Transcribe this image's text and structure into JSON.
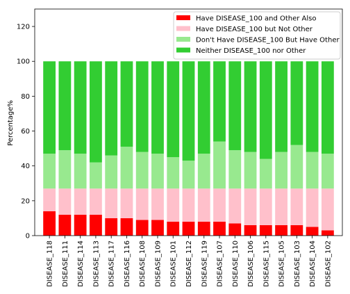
{
  "chart_data": {
    "type": "bar",
    "stacked": true,
    "ylabel": "Percentage%",
    "xlabel": "",
    "title": "",
    "ylim": [
      0,
      130
    ],
    "yticks": [
      0,
      20,
      40,
      60,
      80,
      100,
      120
    ],
    "grid": false,
    "legend_position": "top-right",
    "categories": [
      "DISEASE_118",
      "DISEASE_111",
      "DISEASE_114",
      "DISEASE_113",
      "DISEASE_117",
      "DISEASE_116",
      "DISEASE_108",
      "DISEASE_109",
      "DISEASE_101",
      "DISEASE_112",
      "DISEASE_119",
      "DISEASE_107",
      "DISEASE_110",
      "DISEASE_106",
      "DISEASE_115",
      "DISEASE_105",
      "DISEASE_103",
      "DISEASE_104",
      "DISEASE_102"
    ],
    "series": [
      {
        "name": "Have DISEASE_100 and Other Also",
        "color": "#ff0000",
        "values": [
          14,
          12,
          12,
          12,
          10,
          10,
          9,
          9,
          8,
          8,
          8,
          8,
          7,
          6,
          6,
          6,
          6,
          5,
          3
        ]
      },
      {
        "name": "Have DISEASE_100 but Not Other",
        "color": "#ffc0cb",
        "values": [
          13,
          15,
          15,
          15,
          17,
          17,
          18,
          18,
          19,
          19,
          19,
          19,
          20,
          21,
          21,
          21,
          21,
          22,
          24
        ]
      },
      {
        "name": "Don't Have DISEASE_100 But Have Other",
        "color": "#98e98f",
        "values": [
          20,
          22,
          20,
          15,
          19,
          24,
          21,
          20,
          18,
          16,
          20,
          27,
          22,
          21,
          17,
          21,
          25,
          21,
          20
        ]
      },
      {
        "name": "Neither DISEASE_100 nor Other",
        "color": "#32cd32",
        "values": [
          53,
          51,
          53,
          58,
          54,
          49,
          52,
          53,
          55,
          57,
          53,
          46,
          51,
          52,
          56,
          52,
          48,
          52,
          53
        ]
      }
    ]
  }
}
